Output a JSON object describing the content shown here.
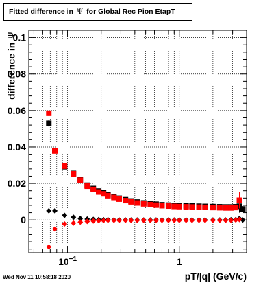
{
  "chart_data": {
    "type": "scatter",
    "title_prefix": "Fitted difference in",
    "title_symbol": "Ψ",
    "title_suffix": "for Global Rec Pion EtapT",
    "ylabel_prefix": "difference in",
    "ylabel_symbol": "Ψ",
    "xlabel": "pT/|q| (GeV/c)",
    "xscale": "log",
    "xlim": [
      0.045,
      4.0
    ],
    "ylim": [
      -0.018,
      0.104
    ],
    "grid": true,
    "x_ticks": [
      {
        "v": 0.1,
        "base": "10",
        "exp": "−1"
      },
      {
        "v": 1,
        "label": "1"
      }
    ],
    "y_ticks": [
      {
        "v": 0,
        "label": "0"
      },
      {
        "v": 0.02,
        "label": "0.02"
      },
      {
        "v": 0.04,
        "label": "0.04"
      },
      {
        "v": 0.06,
        "label": "0.06"
      },
      {
        "v": 0.08,
        "label": "0.08"
      },
      {
        "v": 0.1,
        "label": "0.1"
      }
    ],
    "colors": {
      "black_series": "#000000",
      "red_series": "#ff0000"
    },
    "series": [
      {
        "marker": "square",
        "color": "#000000",
        "x": [
          0.068,
          0.077,
          0.094,
          0.113,
          0.13,
          0.15,
          0.17,
          0.19,
          0.21,
          0.23,
          0.26,
          0.29,
          0.33,
          0.37,
          0.42,
          0.48,
          0.55,
          0.62,
          0.7,
          0.8,
          0.9,
          1.0,
          1.15,
          1.3,
          1.5,
          1.7,
          2.0,
          2.3,
          2.6,
          2.9,
          3.2,
          3.45,
          3.7
        ],
        "y": [
          0.053,
          0.038,
          0.0292,
          0.0255,
          0.022,
          0.019,
          0.0172,
          0.0158,
          0.0148,
          0.0138,
          0.0128,
          0.0119,
          0.0111,
          0.0104,
          0.0098,
          0.0093,
          0.0089,
          0.0086,
          0.0083,
          0.0081,
          0.0079,
          0.0078,
          0.0077,
          0.0076,
          0.0075,
          0.0074,
          0.0073,
          0.0072,
          0.0071,
          0.0071,
          0.0072,
          0.0075,
          0.006
        ],
        "yerr": [
          0.0018,
          0.0012,
          0.0008,
          0.0006,
          0.0004,
          0.0003,
          0.0003,
          0.0002,
          0.0002,
          0.0002,
          0.0002,
          0.0002,
          0.0002,
          0.0002,
          0.0002,
          0.0002,
          0.0002,
          0.0002,
          0.0002,
          0.0002,
          0.0002,
          0.0002,
          0.0002,
          0.0002,
          0.0002,
          0.0003,
          0.0003,
          0.0004,
          0.0005,
          0.0007,
          0.0012,
          0.0035,
          0.0015
        ]
      },
      {
        "marker": "square",
        "color": "#ff0000",
        "x": [
          0.068,
          0.077,
          0.094,
          0.113,
          0.13,
          0.15,
          0.17,
          0.19,
          0.21,
          0.23,
          0.26,
          0.29,
          0.33,
          0.37,
          0.42,
          0.48,
          0.55,
          0.62,
          0.7,
          0.8,
          0.9,
          1.0,
          1.15,
          1.3,
          1.5,
          1.7,
          2.0,
          2.3,
          2.6,
          2.9,
          3.2,
          3.45
        ],
        "y": [
          0.0585,
          0.0378,
          0.0295,
          0.0253,
          0.0218,
          0.0185,
          0.0167,
          0.0153,
          0.0143,
          0.0133,
          0.0123,
          0.0114,
          0.0106,
          0.0099,
          0.0093,
          0.0088,
          0.0084,
          0.0081,
          0.0078,
          0.0076,
          0.0074,
          0.0073,
          0.0072,
          0.0071,
          0.007,
          0.0069,
          0.0068,
          0.0067,
          0.0066,
          0.0066,
          0.0068,
          0.0108
        ],
        "yerr": [
          0.0015,
          0.001,
          0.0007,
          0.0005,
          0.0004,
          0.0003,
          0.0003,
          0.0002,
          0.0002,
          0.0002,
          0.0002,
          0.0002,
          0.0002,
          0.0002,
          0.0002,
          0.0002,
          0.0002,
          0.0002,
          0.0002,
          0.0002,
          0.0002,
          0.0002,
          0.0002,
          0.0002,
          0.0002,
          0.0003,
          0.0003,
          0.0004,
          0.0005,
          0.0007,
          0.001,
          0.0045
        ]
      },
      {
        "marker": "diamond",
        "color": "#000000",
        "x": [
          0.068,
          0.077,
          0.094,
          0.113,
          0.13,
          0.15,
          0.17,
          0.19,
          0.21,
          0.23,
          0.26,
          0.29,
          0.33,
          0.37,
          0.42,
          0.48,
          0.55,
          0.62,
          0.7,
          0.8,
          0.9,
          1.0,
          1.15,
          1.3,
          1.5,
          1.7,
          2.0,
          2.3,
          2.6,
          2.9,
          3.2,
          3.45,
          3.7
        ],
        "y": [
          0.005,
          0.005,
          0.0025,
          0.0015,
          0.0008,
          0.0005,
          0.0003,
          0.0002,
          0.0001,
          0.0001,
          0.0,
          0.0,
          0.0,
          0.0,
          0.0,
          0.0,
          0.0,
          0.0,
          0.0,
          0.0,
          0.0,
          0.0,
          0.0,
          0.0,
          0.0,
          0.0,
          0.0,
          0.0,
          0.0,
          0.0001,
          0.0002,
          0.0008,
          0.0
        ],
        "yerr": [
          0.0008,
          0.0005,
          0.0004,
          0.0003,
          0.0002,
          0.0002,
          0.0001,
          0.0001,
          0.0001,
          0.0001,
          0.0001,
          0.0001,
          0.0001,
          0.0001,
          0.0001,
          0.0001,
          0.0001,
          0.0001,
          0.0001,
          0.0001,
          0.0001,
          0.0001,
          0.0001,
          0.0001,
          0.0001,
          0.0001,
          0.0002,
          0.0002,
          0.0003,
          0.0004,
          0.0006,
          0.0015,
          0.0006
        ]
      },
      {
        "marker": "diamond",
        "color": "#ff0000",
        "x": [
          0.068,
          0.077,
          0.094,
          0.113,
          0.13,
          0.15,
          0.17,
          0.19,
          0.21,
          0.23,
          0.26,
          0.29,
          0.33,
          0.37,
          0.42,
          0.48,
          0.55,
          0.62,
          0.7,
          0.8,
          0.9,
          1.0,
          1.15,
          1.3,
          1.5,
          1.7,
          2.0,
          2.3,
          2.6,
          2.9,
          3.2,
          3.45
        ],
        "y": [
          -0.0148,
          -0.005,
          -0.0022,
          -0.0017,
          -0.0012,
          -0.0008,
          -0.0006,
          -0.0004,
          -0.0003,
          -0.0002,
          -0.0002,
          -0.0002,
          -0.0002,
          -0.0002,
          -0.0002,
          -0.0002,
          -0.0002,
          -0.0002,
          -0.0002,
          -0.0002,
          -0.0002,
          -0.0002,
          -0.0002,
          -0.0002,
          -0.0002,
          -0.0002,
          -0.0002,
          -0.0002,
          -0.0002,
          -0.0002,
          0.0,
          0.0002
        ],
        "yerr": [
          0.0008,
          0.0005,
          0.0004,
          0.0003,
          0.0002,
          0.0002,
          0.0001,
          0.0001,
          0.0001,
          0.0001,
          0.0001,
          0.0001,
          0.0001,
          0.0001,
          0.0001,
          0.0001,
          0.0001,
          0.0001,
          0.0001,
          0.0001,
          0.0001,
          0.0001,
          0.0001,
          0.0001,
          0.0001,
          0.0001,
          0.0002,
          0.0002,
          0.0003,
          0.0004,
          0.0006,
          0.0012
        ]
      }
    ]
  },
  "footer": {
    "datestamp": "Wed Nov 11 10:58:18 2020"
  }
}
